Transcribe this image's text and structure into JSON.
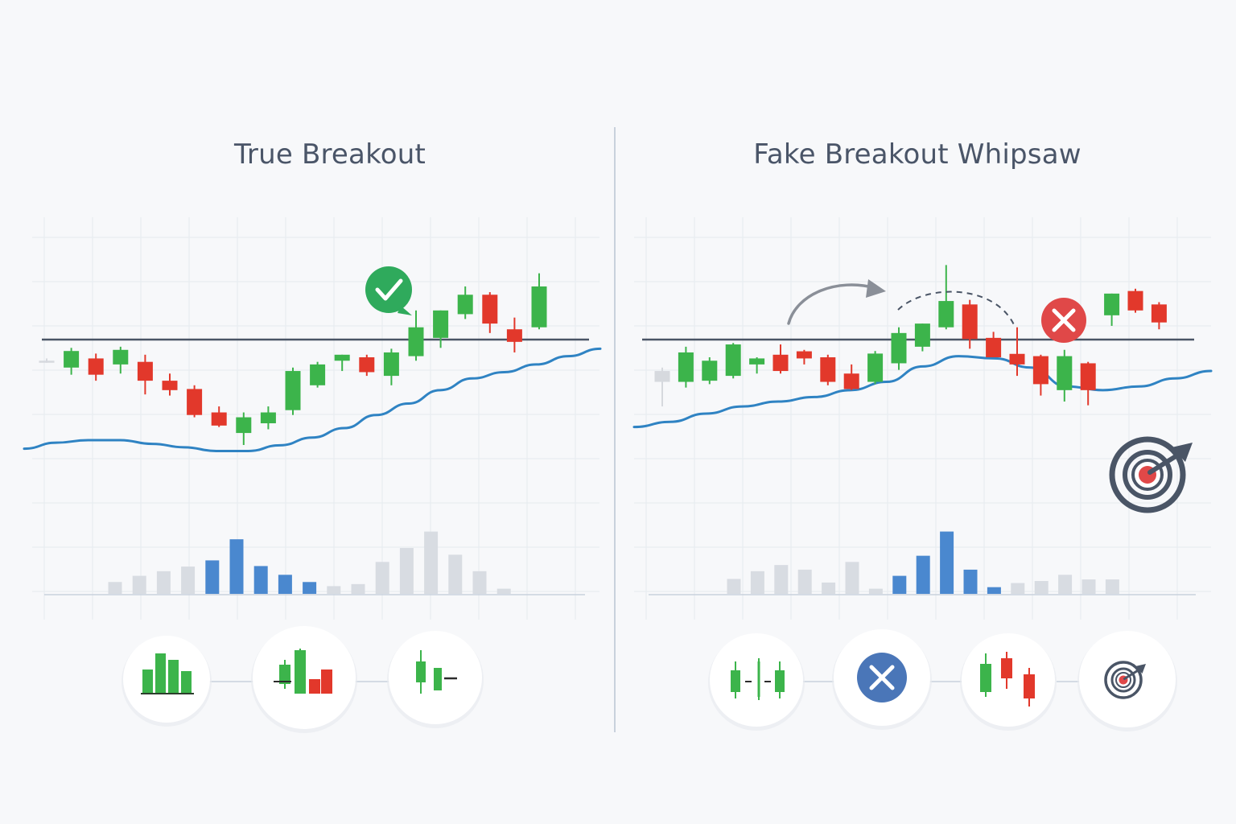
{
  "colors": {
    "bullish": "#3cb44b",
    "bearish": "#e2382b",
    "neutral": "#d8dce2",
    "moving_average": "#2f83c3",
    "volume_highlight": "#4a88cf",
    "level_line": "#4a5566",
    "grid": "#e6eaef",
    "check_badge": "#2faa5c",
    "error_badge": "#e04848",
    "blue_x_icon": "#4a76b8",
    "target_ring": "#4a5566"
  },
  "chart_data": [
    {
      "type": "candlestick",
      "title": "True Breakout",
      "y_axis_shown": false,
      "grid": true,
      "ylim": [
        0,
        100
      ],
      "resistance_level": 60,
      "candles": [
        {
          "o": 52.6,
          "h": 53.4,
          "l": 51.9,
          "c": 52.6
        },
        {
          "o": 50.2,
          "h": 57.1,
          "l": 47.7,
          "c": 56.0
        },
        {
          "o": 53.4,
          "h": 55.1,
          "l": 45.6,
          "c": 47.7
        },
        {
          "o": 51.3,
          "h": 57.5,
          "l": 48.1,
          "c": 56.4
        },
        {
          "o": 52.2,
          "h": 54.7,
          "l": 40.8,
          "c": 45.6
        },
        {
          "o": 45.6,
          "h": 48.1,
          "l": 40.4,
          "c": 42.3
        },
        {
          "o": 42.7,
          "h": 44.0,
          "l": 32.8,
          "c": 33.6
        },
        {
          "o": 34.5,
          "h": 36.6,
          "l": 29.4,
          "c": 29.9
        },
        {
          "o": 27.3,
          "h": 34.5,
          "l": 23.1,
          "c": 32.8
        },
        {
          "o": 30.7,
          "h": 36.6,
          "l": 28.6,
          "c": 34.5
        },
        {
          "o": 35.3,
          "h": 50.2,
          "l": 33.6,
          "c": 49.0
        },
        {
          "o": 44.0,
          "h": 52.2,
          "l": 43.2,
          "c": 51.3
        },
        {
          "o": 52.6,
          "h": 54.7,
          "l": 49.0,
          "c": 54.7
        },
        {
          "o": 53.8,
          "h": 54.7,
          "l": 47.3,
          "c": 48.6
        },
        {
          "o": 47.3,
          "h": 56.8,
          "l": 44.0,
          "c": 55.5
        },
        {
          "o": 54.2,
          "h": 70.2,
          "l": 52.6,
          "c": 64.3
        },
        {
          "o": 60.6,
          "h": 70.2,
          "l": 57.1,
          "c": 70.2
        },
        {
          "o": 68.9,
          "h": 78.6,
          "l": 67.2,
          "c": 75.7
        },
        {
          "o": 75.7,
          "h": 76.6,
          "l": 62.3,
          "c": 65.6
        },
        {
          "o": 63.6,
          "h": 67.7,
          "l": 55.5,
          "c": 59.2
        },
        {
          "o": 64.3,
          "h": 83.2,
          "l": 63.6,
          "c": 78.6
        }
      ],
      "moving_average": [
        21.8,
        23.9,
        24.8,
        24.8,
        23.5,
        22.3,
        21.0,
        21.0,
        23.0,
        25.7,
        29.0,
        33.6,
        37.6,
        42.3,
        46.4,
        48.6,
        51.3,
        54.2,
        56.8
      ],
      "volume": [
        {
          "v": 2.3,
          "hl": "none"
        },
        {
          "v": 3.5,
          "hl": "none"
        },
        {
          "v": 4.4,
          "hl": "none"
        },
        {
          "v": 5.3,
          "hl": "none"
        },
        {
          "v": 6.5,
          "hl": "up"
        },
        {
          "v": 10.6,
          "hl": "up"
        },
        {
          "v": 5.4,
          "hl": "up"
        },
        {
          "v": 3.7,
          "hl": "up"
        },
        {
          "v": 2.3,
          "hl": "up"
        },
        {
          "v": 1.5,
          "hl": "none"
        },
        {
          "v": 1.9,
          "hl": "none"
        },
        {
          "v": 6.2,
          "hl": "none"
        },
        {
          "v": 8.9,
          "hl": "none"
        },
        {
          "v": 12.1,
          "hl": "none"
        },
        {
          "v": 7.6,
          "hl": "none"
        },
        {
          "v": 4.4,
          "hl": "none"
        },
        {
          "v": 1.0,
          "hl": "none"
        }
      ],
      "annotation_icons": [
        "check-badge-icon"
      ],
      "footer_icons": [
        "volume-bars-icon",
        "breakout-candles-icon",
        "retest-candle-icon"
      ]
    },
    {
      "type": "candlestick",
      "title": "Fake Breakout Whipsaw",
      "y_axis_shown": false,
      "grid": true,
      "ylim": [
        0,
        100
      ],
      "resistance_level": 60,
      "candles": [
        {
          "o": 49.0,
          "h": 50.2,
          "l": 36.6,
          "c": 45.2
        },
        {
          "o": 45.2,
          "h": 57.5,
          "l": 43.2,
          "c": 55.5
        },
        {
          "o": 45.6,
          "h": 53.8,
          "l": 44.4,
          "c": 52.6
        },
        {
          "o": 47.3,
          "h": 58.8,
          "l": 46.4,
          "c": 58.3
        },
        {
          "o": 51.3,
          "h": 53.8,
          "l": 48.1,
          "c": 53.4
        },
        {
          "o": 54.7,
          "h": 58.3,
          "l": 48.1,
          "c": 49.0
        },
        {
          "o": 55.9,
          "h": 56.4,
          "l": 51.3,
          "c": 53.4
        },
        {
          "o": 53.8,
          "h": 54.7,
          "l": 44.0,
          "c": 45.2
        },
        {
          "o": 48.1,
          "h": 51.3,
          "l": 42.3,
          "c": 42.7
        },
        {
          "o": 45.2,
          "h": 56.0,
          "l": 44.4,
          "c": 55.1
        },
        {
          "o": 51.7,
          "h": 64.3,
          "l": 49.4,
          "c": 62.3
        },
        {
          "o": 57.5,
          "h": 65.6,
          "l": 55.9,
          "c": 65.6
        },
        {
          "o": 64.3,
          "h": 86.1,
          "l": 63.6,
          "c": 73.5
        },
        {
          "o": 72.3,
          "h": 73.9,
          "l": 56.8,
          "c": 60.2
        },
        {
          "o": 60.6,
          "h": 62.7,
          "l": 53.8,
          "c": 53.8
        },
        {
          "o": 55.0,
          "h": 64.3,
          "l": 47.3,
          "c": 51.3
        },
        {
          "o": 54.2,
          "h": 54.7,
          "l": 40.4,
          "c": 44.4
        },
        {
          "o": 42.3,
          "h": 56.4,
          "l": 38.3,
          "c": 54.2
        },
        {
          "o": 51.7,
          "h": 52.2,
          "l": 37.0,
          "c": 42.3
        },
        {
          "o": 68.5,
          "h": 76.1,
          "l": 64.8,
          "c": 76.1
        },
        {
          "o": 77.0,
          "h": 77.8,
          "l": 69.4,
          "c": 70.2
        },
        {
          "o": 72.3,
          "h": 73.1,
          "l": 63.6,
          "c": 66.0
        }
      ],
      "moving_average": [
        29.4,
        31.2,
        34.1,
        36.6,
        38.3,
        39.9,
        42.3,
        45.2,
        50.6,
        54.2,
        53.4,
        50.2,
        43.6,
        42.3,
        43.6,
        46.4,
        49.0
      ],
      "volume": [
        {
          "v": 2.9,
          "hl": "none"
        },
        {
          "v": 4.4,
          "hl": "none"
        },
        {
          "v": 5.6,
          "hl": "none"
        },
        {
          "v": 4.7,
          "hl": "none"
        },
        {
          "v": 2.2,
          "hl": "none"
        },
        {
          "v": 6.2,
          "hl": "none"
        },
        {
          "v": 1.0,
          "hl": "none"
        },
        {
          "v": 3.5,
          "hl": "up"
        },
        {
          "v": 7.4,
          "hl": "up"
        },
        {
          "v": 12.1,
          "hl": "up"
        },
        {
          "v": 4.7,
          "hl": "up"
        },
        {
          "v": 1.3,
          "hl": "up"
        },
        {
          "v": 2.1,
          "hl": "none"
        },
        {
          "v": 2.5,
          "hl": "none"
        },
        {
          "v": 3.7,
          "hl": "none"
        },
        {
          "v": 2.8,
          "hl": "none"
        },
        {
          "v": 2.8,
          "hl": "none"
        }
      ],
      "annotation_icons": [
        "curved-arrow-icon",
        "error-badge-icon",
        "target-icon"
      ],
      "footer_icons": [
        "range-candles-icon",
        "cancel-x-icon",
        "whipsaw-candles-icon",
        "target-icon"
      ]
    }
  ]
}
